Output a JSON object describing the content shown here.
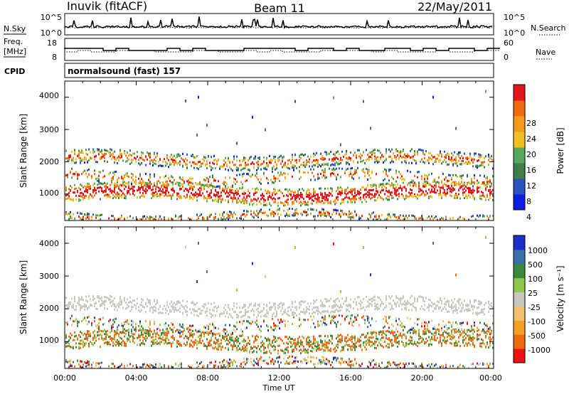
{
  "header": {
    "station": "Inuvik (fitACF)",
    "beam": "Beam 11",
    "date": "22/May/2011"
  },
  "side_labels": {
    "nsky": "N.Sky",
    "nsearch": "N.Search",
    "freq_line1": "Freq.",
    "freq_line2": "[MHz]",
    "nave": "Nave",
    "cpid": "CPID"
  },
  "cpid_text": "normalsound (fast) 157",
  "colors": {
    "power_scale": [
      "#0a1ee6",
      "#2a52c0",
      "#3f7d4b",
      "#55a85e",
      "#f0c020",
      "#f59a1a",
      "#f26a10",
      "#e2151b"
    ],
    "velocity_scale": [
      "#ee1111",
      "#f06a10",
      "#f5a020",
      "#f0c070",
      "#c8c8c0",
      "#8fc84a",
      "#3a8a3e",
      "#3a6fa8",
      "#1a2ecc"
    ]
  },
  "chart_data": [
    {
      "type": "line",
      "panel": "noise",
      "series": [
        {
          "name": "N.Sky"
        },
        {
          "name": "N.Search"
        }
      ],
      "left_ticks": [
        "10^5",
        "10^0"
      ],
      "right_ticks": [
        "10^5",
        "10^0"
      ]
    },
    {
      "type": "line",
      "panel": "freq-nave",
      "series": [
        {
          "name": "Freq."
        },
        {
          "name": "Nave"
        }
      ],
      "left_ticks": [
        "18",
        "8"
      ],
      "right_ticks": [
        "60",
        "0"
      ]
    },
    {
      "type": "heatmap",
      "panel": "power",
      "ylabel": "Slant Range [km]",
      "yticks": [
        "4000",
        "3000",
        "2000",
        "1000"
      ],
      "ylim": [
        180,
        4500
      ],
      "xlim": [
        0,
        24
      ],
      "colorbar_label": "Power [dB]",
      "colorbar_ticks": [
        "28",
        "24",
        "20",
        "16",
        "12",
        "8",
        "4"
      ],
      "colorbar_range": [
        0,
        32
      ]
    },
    {
      "type": "heatmap",
      "panel": "velocity",
      "ylabel": "Slant Range [km]",
      "xlabel": "Time UT",
      "yticks": [
        "4000",
        "3000",
        "2000",
        "1000"
      ],
      "xticks": [
        "00:00",
        "04:00",
        "08:00",
        "12:00",
        "16:00",
        "20:00",
        "00:00"
      ],
      "ylim": [
        180,
        4500
      ],
      "xlim": [
        0,
        24
      ],
      "colorbar_label": "Velocity [m s⁻¹]",
      "colorbar_ticks": [
        "1000",
        "500",
        "100",
        "25",
        "-25",
        "-100",
        "-500",
        "-1000"
      ]
    }
  ]
}
